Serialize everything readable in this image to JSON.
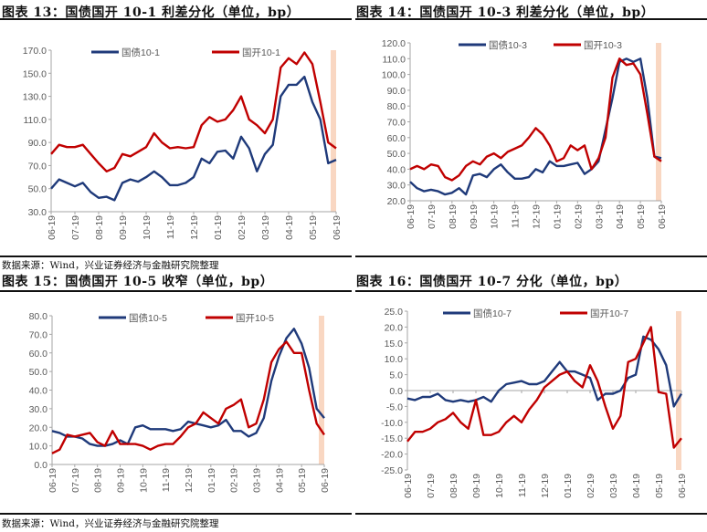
{
  "sources": {
    "text": "数据来源：Wind，兴业证券经济与金融研究院整理"
  },
  "colors": {
    "blue": "#1f3a7a",
    "red": "#c00000",
    "highlight": "#f8cdb3",
    "axis": "#a6a6a6"
  },
  "chart_data": [
    {
      "type": "line",
      "title": "图表 13：国债国开 10-1 利差分化（单位，bp）",
      "x_ticks": [
        "06-19",
        "07-19",
        "08-19",
        "09-19",
        "10-19",
        "11-19",
        "12-19",
        "01-19",
        "02-19",
        "03-19",
        "04-19",
        "05-19",
        "06-19"
      ],
      "ylim": [
        30,
        170
      ],
      "y_ticks": [
        "30.0",
        "50.0",
        "70.0",
        "90.0",
        "110.0",
        "130.0",
        "150.0",
        "170.0"
      ],
      "legend": "top",
      "highlight_band": "last week",
      "series": [
        {
          "name": "国债10-1",
          "color": "#1f3a7a",
          "values": [
            50,
            58,
            55,
            52,
            55,
            47,
            42,
            43,
            40,
            55,
            58,
            56,
            60,
            65,
            60,
            53,
            53,
            55,
            60,
            76,
            72,
            82,
            83,
            76,
            95,
            85,
            65,
            80,
            88,
            130,
            140,
            140,
            147,
            125,
            110,
            72,
            75
          ]
        },
        {
          "name": "国开10-1",
          "color": "#c00000",
          "values": [
            80,
            88,
            86,
            86,
            88,
            80,
            72,
            65,
            68,
            80,
            78,
            82,
            86,
            98,
            90,
            85,
            86,
            85,
            86,
            105,
            112,
            108,
            110,
            118,
            130,
            110,
            105,
            98,
            110,
            155,
            163,
            158,
            168,
            158,
            125,
            90,
            85
          ]
        }
      ]
    },
    {
      "type": "line",
      "title": "图表 14：国债国开 10-3 利差分化（单位，bp）",
      "x_ticks": [
        "06-19",
        "07-19",
        "08-19",
        "09-19",
        "10-19",
        "11-19",
        "12-19",
        "01-19",
        "02-19",
        "03-19",
        "04-19",
        "05-19",
        "06-19"
      ],
      "ylim": [
        20,
        120
      ],
      "y_ticks": [
        "20.0",
        "30.0",
        "40.0",
        "50.0",
        "60.0",
        "70.0",
        "80.0",
        "90.0",
        "100.0",
        "110.0",
        "120.0"
      ],
      "legend": "top",
      "highlight_band": "last week",
      "series": [
        {
          "name": "国债10-3",
          "color": "#1f3a7a",
          "values": [
            32,
            28,
            26,
            27,
            26,
            24,
            25,
            28,
            24,
            36,
            37,
            35,
            40,
            43,
            38,
            34,
            34,
            35,
            40,
            38,
            45,
            42,
            42,
            43,
            44,
            37,
            40,
            45,
            65,
            85,
            108,
            110,
            108,
            110,
            85,
            48,
            47
          ]
        },
        {
          "name": "国开10-3",
          "color": "#c00000",
          "values": [
            40,
            42,
            40,
            43,
            42,
            35,
            33,
            36,
            42,
            45,
            43,
            48,
            50,
            47,
            51,
            53,
            55,
            60,
            66,
            62,
            55,
            45,
            47,
            55,
            52,
            55,
            40,
            47,
            60,
            98,
            110,
            106,
            107,
            100,
            75,
            48,
            45
          ]
        }
      ]
    },
    {
      "type": "line",
      "title": "图表 15：国债国开 10-5 收窄（单位，bp）",
      "x_ticks": [
        "06-19",
        "07-19",
        "08-19",
        "09-19",
        "10-19",
        "11-19",
        "12-19",
        "01-19",
        "02-19",
        "03-19",
        "04-19",
        "05-19",
        "06-19"
      ],
      "ylim": [
        0,
        80
      ],
      "y_ticks": [
        "0.0",
        "10.0",
        "20.0",
        "30.0",
        "40.0",
        "50.0",
        "60.0",
        "70.0",
        "80.0"
      ],
      "legend": "top",
      "highlight_band": "last week",
      "series": [
        {
          "name": "国债10-5",
          "color": "#1f3a7a",
          "values": [
            18,
            17,
            15,
            15,
            14,
            11,
            10,
            10,
            11,
            13,
            11,
            20,
            21,
            19,
            19,
            19,
            18,
            19,
            23,
            22,
            21,
            20,
            21,
            24,
            18,
            18,
            15,
            17,
            25,
            45,
            58,
            68,
            73,
            65,
            52,
            30,
            25
          ]
        },
        {
          "name": "国开10-5",
          "color": "#c00000",
          "values": [
            6,
            8,
            16,
            15,
            16,
            17,
            12,
            10,
            18,
            11,
            11,
            11,
            10,
            8,
            10,
            11,
            11,
            15,
            20,
            22,
            28,
            25,
            22,
            30,
            32,
            35,
            20,
            22,
            35,
            55,
            62,
            66,
            60,
            60,
            40,
            22,
            16
          ]
        }
      ]
    },
    {
      "type": "line",
      "title": "图表 16：国债国开 10-7 分化（单位，bp）",
      "x_ticks": [
        "06-19",
        "07-19",
        "08-19",
        "09-19",
        "10-19",
        "11-19",
        "12-19",
        "01-19",
        "02-19",
        "03-19",
        "04-19",
        "05-19",
        "06-19"
      ],
      "ylim": [
        -25,
        25
      ],
      "y_ticks": [
        "-25.0",
        "-20.0",
        "-15.0",
        "-10.0",
        "-5.0",
        "0.0",
        "5.0",
        "10.0",
        "15.0",
        "20.0",
        "25.0"
      ],
      "legend": "top",
      "highlight_band": "last week",
      "series": [
        {
          "name": "国债10-7",
          "color": "#1f3a7a",
          "values": [
            -2.5,
            -3,
            -2,
            -2,
            -1,
            -3,
            -3.5,
            -3,
            -3.5,
            -3,
            -2,
            -3.5,
            0,
            2,
            2.5,
            3,
            2,
            2,
            3,
            6,
            9,
            6,
            6,
            5,
            4,
            -3,
            -1,
            -1,
            0,
            4,
            5,
            17,
            16,
            13,
            8,
            -5,
            -1
          ]
        },
        {
          "name": "国开10-7",
          "color": "#c00000",
          "values": [
            -16,
            -13,
            -13,
            -12,
            -10,
            -9,
            -7,
            -10,
            -12,
            -3,
            -14,
            -14,
            -13,
            -10,
            -8,
            -10,
            -6,
            -3,
            1,
            3,
            5,
            6,
            3,
            1,
            8,
            3,
            -5,
            -12,
            -8,
            9,
            10,
            15,
            20,
            -0.5,
            -1,
            -18,
            -15
          ]
        }
      ]
    }
  ]
}
